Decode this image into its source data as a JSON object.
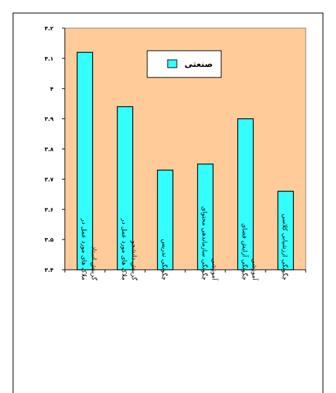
{
  "chart_data": {
    "type": "bar",
    "categories": [
      [
        "ملاک های مورد عمل در",
        "گزینش استاد"
      ],
      [
        "ملاک های مورد عمل در",
        "گزینش دانشجو"
      ],
      [
        "چگونگی تدریس"
      ],
      [
        "چگونگی سازماندهی محتوای",
        "آموزشی"
      ],
      [
        "چگونگی آرایش فضای",
        "آموزشی"
      ],
      [
        "چگونگی ارزشیابی کلاسی"
      ]
    ],
    "series": [
      {
        "name": "صنعتی",
        "values": [
          4.12,
          3.94,
          3.73,
          3.75,
          3.9,
          3.66
        ]
      }
    ],
    "ylim": [
      3.4,
      4.2
    ],
    "yticks": [
      3.4,
      3.5,
      3.6,
      3.7,
      3.8,
      3.9,
      4.0,
      4.1,
      4.2
    ],
    "ytick_labels": [
      "۳.۴",
      "۳.۵",
      "۳.۶",
      "۳.۷",
      "۳.۸",
      "۳.۹",
      "۴",
      "۴.۱",
      "۴.۲"
    ],
    "legend_position": "top-right",
    "grid": false,
    "colors": {
      "plot_bg": "#ffcc99",
      "bar_fill": "#33ffff",
      "bar_stroke": "#000000",
      "legend_bg": "#ffffff"
    }
  }
}
